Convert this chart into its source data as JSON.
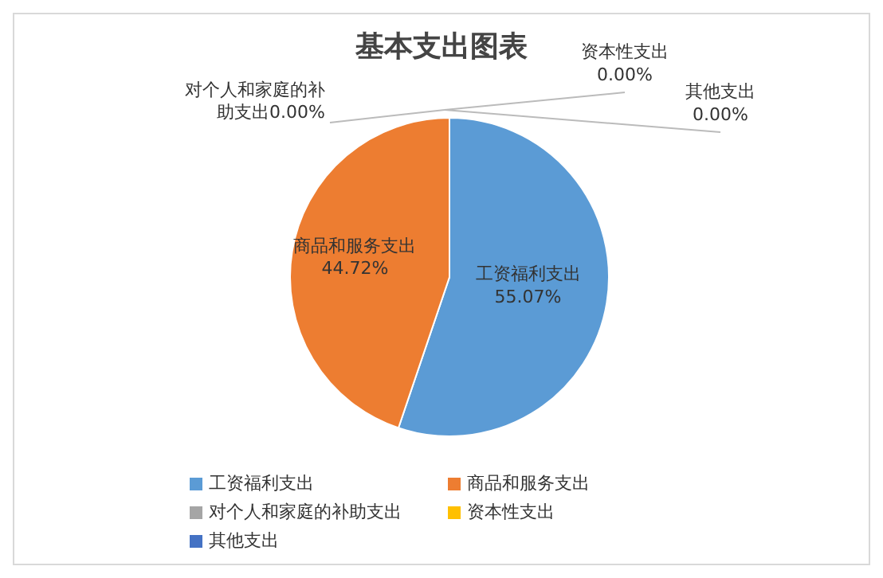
{
  "chart_data": {
    "type": "pie",
    "title": "基本支出图表",
    "categories": [
      "工资福利支出",
      "商品和服务支出",
      "对个人和家庭的补助支出",
      "资本性支出",
      "其他支出"
    ],
    "values": [
      55.07,
      44.72,
      0,
      0,
      0
    ],
    "colors": [
      "#5b9bd5",
      "#ed7d31",
      "#a5a5a5",
      "#ffc000",
      "#4472c4"
    ],
    "value_labels": [
      "55.07%",
      "44.72%",
      "0.00%",
      "0.00%",
      "0.00%"
    ],
    "legend": "bottom"
  }
}
